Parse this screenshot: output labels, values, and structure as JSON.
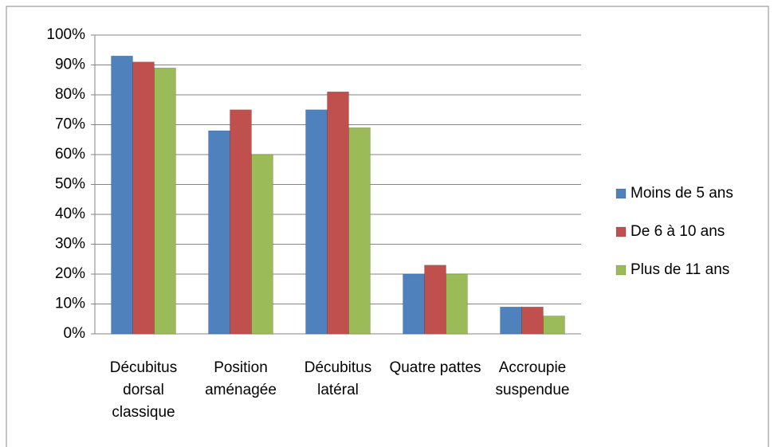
{
  "chart_data": {
    "type": "bar",
    "categories": [
      "Décubitus dorsal classique",
      "Position aménagée",
      "Décubitus latéral",
      "Quatre pattes",
      "Accroupie suspendue"
    ],
    "series": [
      {
        "name": "Moins de 5 ans",
        "color": "#4f81bd",
        "values": [
          93,
          68,
          75,
          20,
          9
        ]
      },
      {
        "name": "De 6 à 10 ans",
        "color": "#c0504d",
        "values": [
          91,
          75,
          81,
          23,
          9
        ]
      },
      {
        "name": "Plus de 11 ans",
        "color": "#9bbb59",
        "values": [
          89,
          60,
          69,
          20,
          6
        ]
      }
    ],
    "ylim": [
      0,
      100
    ],
    "yticks": [
      {
        "value": 0,
        "label": "0%"
      },
      {
        "value": 10,
        "label": "10%"
      },
      {
        "value": 20,
        "label": "20%"
      },
      {
        "value": 30,
        "label": "30%"
      },
      {
        "value": 40,
        "label": "40%"
      },
      {
        "value": 50,
        "label": "50%"
      },
      {
        "value": 60,
        "label": "60%"
      },
      {
        "value": 70,
        "label": "70%"
      },
      {
        "value": 80,
        "label": "80%"
      },
      {
        "value": 90,
        "label": "90%"
      },
      {
        "value": 100,
        "label": "100%"
      }
    ],
    "grid": true,
    "legend": "right"
  }
}
